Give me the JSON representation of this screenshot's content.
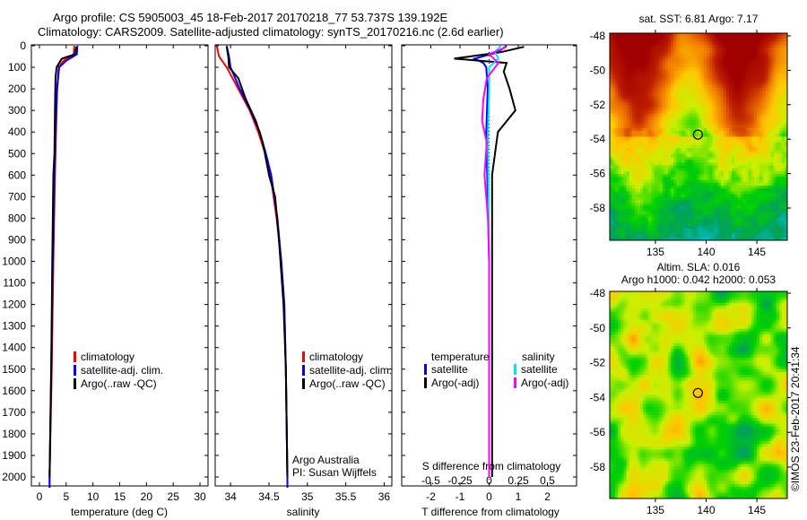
{
  "title_line1": "Argo profile: CS 5905003_45 18-Feb-2017 20170218_77 53.737S 139.192E",
  "title_line2": "Climatology: CARS2009. Satellite-adjusted climatology: synTS_20170216.nc (2.6d earlier)",
  "colors": {
    "climatology": "#ff0000",
    "satellite": "#0000ff",
    "argo": "#000000",
    "sal_satellite": "#00e5ee",
    "sal_argo": "#ff00ff"
  },
  "chart_data": [
    {
      "type": "line",
      "name": "temperature-panel",
      "xlabel": "temperature (deg C)",
      "xlim": [
        -1.5,
        31.5
      ],
      "ylim": [
        2050,
        0
      ],
      "xticks": [
        "0",
        "5",
        "10",
        "15",
        "20",
        "25",
        "30"
      ],
      "xtick_values": [
        0,
        5,
        10,
        15,
        20,
        25,
        30
      ],
      "yticks": [
        "0",
        "100",
        "200",
        "300",
        "400",
        "500",
        "600",
        "700",
        "800",
        "900",
        "1000",
        "1100",
        "1200",
        "1300",
        "1400",
        "1500",
        "1600",
        "1700",
        "1800",
        "1900",
        "2000"
      ],
      "legend": [
        "climatology",
        "satellite-adj. clim.",
        "Argo(..raw -QC)"
      ],
      "series": [
        {
          "name": "climatology",
          "depth": [
            0,
            40,
            70,
            100,
            200,
            400,
            600,
            1000,
            1500,
            2000,
            2050
          ],
          "values": [
            6.5,
            6.4,
            4.5,
            3.6,
            3.3,
            3.1,
            2.9,
            2.6,
            2.3,
            1.9,
            1.9
          ]
        },
        {
          "name": "satellite-adj. clim.",
          "depth": [
            0,
            40,
            70,
            100,
            200,
            400,
            600,
            1000,
            1500,
            2000,
            2050
          ],
          "values": [
            7.1,
            7.0,
            5.0,
            3.7,
            3.3,
            3.0,
            2.8,
            2.5,
            2.2,
            1.9,
            1.9
          ]
        },
        {
          "name": "Argo(..raw -QC)",
          "depth": [
            5,
            40,
            60,
            100,
            150,
            300,
            500,
            600,
            1000,
            1500,
            2000
          ],
          "values": [
            6.9,
            6.6,
            4.2,
            3.2,
            3.0,
            2.9,
            2.8,
            2.6,
            2.4,
            2.2,
            1.9
          ]
        }
      ]
    },
    {
      "type": "line",
      "name": "salinity-panel",
      "xlabel": "salinity",
      "xlim": [
        33.8,
        36.1
      ],
      "ylim": [
        2050,
        0
      ],
      "xticks": [
        "34",
        "34.5",
        "35",
        "35.5",
        "36"
      ],
      "xtick_values": [
        34,
        34.5,
        35,
        35.5,
        36
      ],
      "legend": [
        "climatology",
        "satellite-adj. clim.",
        "Argo(..raw -QC)"
      ],
      "annotation": [
        "Argo Australia",
        "PI: Susan Wijffels"
      ],
      "series": [
        {
          "name": "climatology",
          "depth": [
            0,
            50,
            100,
            200,
            300,
            400,
            500,
            600,
            800,
            1000,
            1200,
            1500,
            2000,
            2050
          ],
          "values": [
            33.82,
            33.85,
            33.95,
            34.1,
            34.25,
            34.36,
            34.45,
            34.52,
            34.6,
            34.66,
            34.7,
            34.72,
            34.74,
            34.74
          ]
        },
        {
          "name": "satellite-adj. clim.",
          "depth": [
            0,
            50,
            100,
            200,
            300,
            400,
            500,
            600,
            800,
            1000,
            1200,
            1500,
            2000,
            2050
          ],
          "values": [
            33.95,
            33.98,
            34.0,
            34.12,
            34.26,
            34.38,
            34.46,
            34.53,
            34.61,
            34.66,
            34.7,
            34.72,
            34.74,
            34.74
          ]
        },
        {
          "name": "Argo(..raw -QC)",
          "depth": [
            5,
            50,
            100,
            150,
            250,
            350,
            450,
            600,
            700,
            900,
            1200,
            1500,
            2000
          ],
          "values": [
            33.95,
            33.97,
            33.98,
            34.1,
            34.2,
            34.33,
            34.42,
            34.5,
            34.58,
            34.63,
            34.69,
            34.72,
            34.74
          ]
        }
      ]
    },
    {
      "type": "line",
      "name": "difference-panel",
      "xlabel": "T difference from climatology",
      "xlabel_top": "S difference from climatology",
      "xlim": [
        -3,
        3
      ],
      "xticks": [
        "-2",
        "-1",
        "0",
        "1",
        "2"
      ],
      "xtick_values": [
        -2,
        -1,
        0,
        1,
        2
      ],
      "xticks_top": [
        "-0.5",
        "-0.25",
        "0",
        "0.25",
        "0.5"
      ],
      "xtick_top_values": [
        -0.5,
        -0.25,
        0,
        0.25,
        0.5
      ],
      "legend": {
        "temperature": [
          "satellite",
          "Argo(-adj)"
        ],
        "salinity": [
          "satellite",
          "Argo(-adj)"
        ],
        "headers": [
          "temperature",
          "salinity"
        ]
      },
      "series": [
        {
          "name": "T satellite",
          "depth": [
            0,
            30,
            60,
            80,
            100,
            200,
            400,
            1000,
            2000
          ],
          "values": [
            0.6,
            0.3,
            -0.5,
            -0.2,
            -0.1,
            -0.05,
            -0.1,
            0,
            0
          ]
        },
        {
          "name": "T Argo",
          "depth": [
            5,
            30,
            60,
            80,
            120,
            200,
            300,
            400,
            600,
            1000,
            2000
          ],
          "values": [
            1.2,
            0.4,
            -1.2,
            0.6,
            0.5,
            0.7,
            0.9,
            0.3,
            0.1,
            0.1,
            0.1
          ]
        },
        {
          "name": "S satellite",
          "depth": [
            0,
            30,
            60,
            100,
            200,
            400,
            1000,
            2000
          ],
          "values": [
            0.1,
            0.05,
            0.08,
            0.0,
            0.0,
            -0.01,
            0,
            0
          ]
        },
        {
          "name": "S Argo",
          "depth": [
            5,
            40,
            80,
            150,
            250,
            350,
            450,
            600,
            800,
            1000,
            2000
          ],
          "values": [
            0.15,
            0.0,
            0.08,
            -0.02,
            -0.05,
            -0.06,
            -0.02,
            -0.04,
            -0.01,
            0,
            0
          ]
        }
      ]
    },
    {
      "type": "heatmap",
      "name": "sst-map",
      "title": "sat. SST: 6.81  Argo: 7.17",
      "lon": [
        130.5,
        148
      ],
      "lat": [
        -59.8,
        -47.6
      ],
      "xticks": [
        "135",
        "140",
        "145"
      ],
      "yticks": [
        "-48",
        "-50",
        "-52",
        "-54",
        "-56",
        "-58"
      ],
      "float": {
        "lon": 139.192,
        "lat": -53.737
      }
    },
    {
      "type": "heatmap",
      "name": "sla-map",
      "title": [
        "Altim. SLA: 0.016",
        "Argo h1000: 0.042 h2000: 0.053"
      ],
      "lon": [
        130.5,
        148
      ],
      "lat": [
        -59.8,
        -47.6
      ],
      "xticks": [
        "135",
        "140",
        "145"
      ],
      "yticks": [
        "-48",
        "-50",
        "-52",
        "-54",
        "-56",
        "-58"
      ],
      "float": {
        "lon": 139.192,
        "lat": -53.737
      }
    }
  ],
  "credit": "©IMOS 23-Feb-2017 20:41:34"
}
